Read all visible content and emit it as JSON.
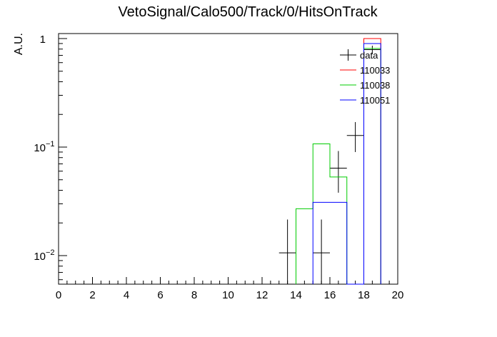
{
  "chart_data": {
    "type": "histogram",
    "title": "VetoSignal/Calo500/Track/0/HitsOnTrack",
    "ylabel": "A.U.",
    "xlabel": "",
    "xlim": [
      0,
      20
    ],
    "ylim": [
      0.0055,
      1.15
    ],
    "yscale": "log",
    "x_ticks": [
      "0",
      "2",
      "4",
      "6",
      "8",
      "10",
      "12",
      "14",
      "16",
      "18",
      "20"
    ],
    "y_ticks": [
      {
        "value": 1,
        "label": "1"
      },
      {
        "value": 0.1,
        "label": "10",
        "exp": "−1"
      },
      {
        "value": 0.01,
        "label": "10",
        "exp": "−2"
      }
    ],
    "legend_position": "top-right",
    "series": [
      {
        "name": "data",
        "kind": "points",
        "color": "#000000",
        "points": [
          {
            "x": 13.5,
            "y": 0.0106,
            "ylo": 0.004,
            "yhi": 0.0215
          },
          {
            "x": 15.5,
            "y": 0.0106,
            "ylo": 0.004,
            "yhi": 0.0215
          },
          {
            "x": 16.5,
            "y": 0.064,
            "ylo": 0.038,
            "yhi": 0.092
          },
          {
            "x": 17.5,
            "y": 0.128,
            "ylo": 0.09,
            "yhi": 0.17
          },
          {
            "x": 18.5,
            "y": 0.79,
            "ylo": 0.72,
            "yhi": 0.86
          }
        ]
      },
      {
        "name": "110033",
        "kind": "hist",
        "color": "#ff0000",
        "bins": [
          {
            "lo": 18,
            "hi": 19,
            "y": 1.0
          }
        ]
      },
      {
        "name": "110038",
        "kind": "hist",
        "color": "#00cc00",
        "bins": [
          {
            "lo": 14,
            "hi": 15,
            "y": 0.027
          },
          {
            "lo": 15,
            "hi": 16,
            "y": 0.107
          },
          {
            "lo": 16,
            "hi": 17,
            "y": 0.053
          },
          {
            "lo": 17,
            "hi": 18,
            "y": 0
          },
          {
            "lo": 18,
            "hi": 19,
            "y": 0.81
          }
        ]
      },
      {
        "name": "110051",
        "kind": "hist",
        "color": "#0000ff",
        "bins": [
          {
            "lo": 15,
            "hi": 16,
            "y": 0.031
          },
          {
            "lo": 16,
            "hi": 17,
            "y": 0.031
          },
          {
            "lo": 17,
            "hi": 18,
            "y": 0
          },
          {
            "lo": 18,
            "hi": 19,
            "y": 0.9
          }
        ]
      }
    ]
  }
}
